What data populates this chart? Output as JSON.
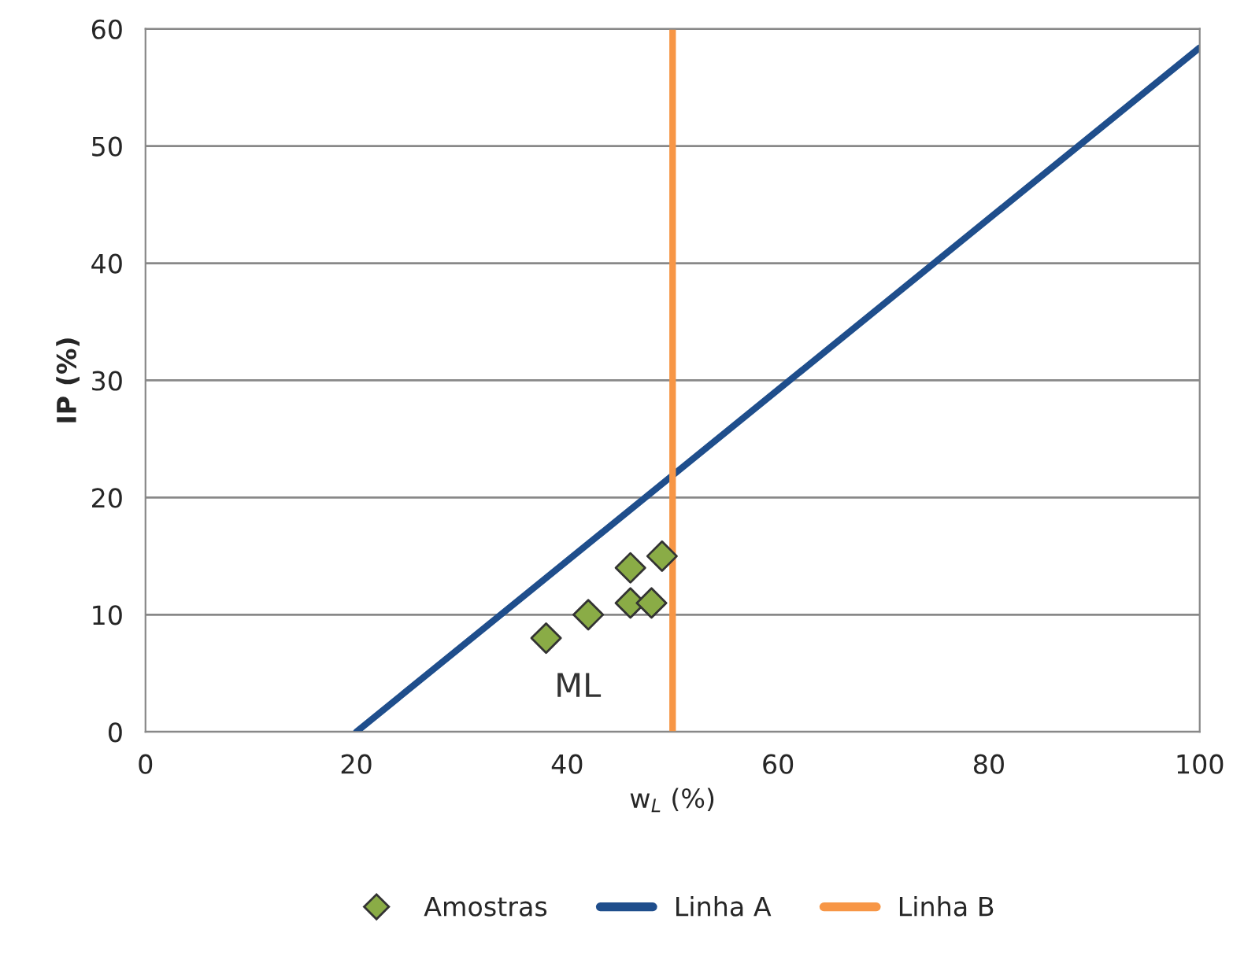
{
  "chart_data": {
    "type": "scatter",
    "xlabel": "w$_{L}$ (%)",
    "ylabel": "IP (%)",
    "series": [
      {
        "name": "Amostras",
        "color": "#8aac46",
        "marker": "diamond",
        "x": [
          38,
          42,
          46,
          46,
          48,
          49
        ],
        "values": [
          8,
          10,
          14,
          11,
          11,
          15
        ]
      },
      {
        "name": "Linha A",
        "type": "line",
        "color": "#1f4e8c",
        "x": [
          20,
          100
        ],
        "values": [
          0,
          58.4
        ]
      },
      {
        "name": "Linha B",
        "type": "line",
        "color": "#f79646",
        "x": [
          50,
          50
        ],
        "values": [
          0,
          60
        ]
      }
    ],
    "annotations": [
      "ML"
    ],
    "xlim": [
      0,
      100
    ],
    "xticks": [
      0,
      20,
      40,
      60,
      80,
      100
    ],
    "ylim": [
      0,
      60
    ],
    "yticks": [
      0,
      10,
      20,
      30,
      40,
      50,
      60
    ],
    "grid": "y",
    "legend": "bottom"
  }
}
